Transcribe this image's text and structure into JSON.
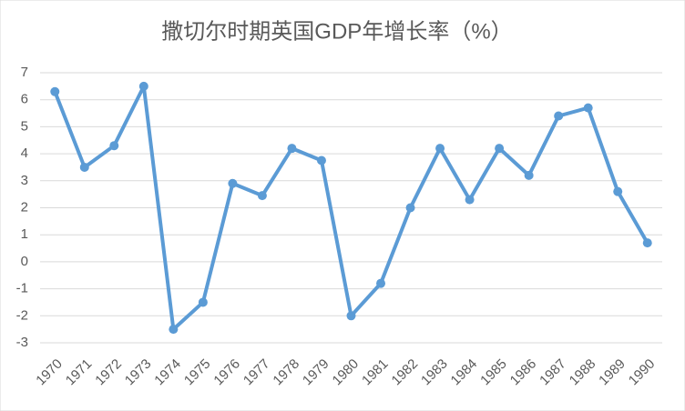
{
  "chart_data": {
    "type": "line",
    "title": "撒切尔时期英国GDP年增长率（%）",
    "categories": [
      "1970",
      "1971",
      "1972",
      "1973",
      "1974",
      "1975",
      "1976",
      "1977",
      "1978",
      "1979",
      "1980",
      "1981",
      "1982",
      "1983",
      "1984",
      "1985",
      "1986",
      "1987",
      "1988",
      "1989",
      "1990"
    ],
    "values": [
      6.3,
      3.5,
      4.3,
      6.5,
      -2.5,
      -1.5,
      2.9,
      2.45,
      4.2,
      3.75,
      -2.0,
      -0.8,
      2.0,
      4.2,
      2.3,
      4.2,
      3.2,
      5.4,
      5.7,
      2.6,
      0.7
    ],
    "color": "#5b9bd5",
    "ylim": [
      -3,
      7
    ],
    "yticks": [
      -3,
      -2,
      -1,
      0,
      1,
      2,
      3,
      4,
      5,
      6,
      7
    ],
    "grid": true
  }
}
